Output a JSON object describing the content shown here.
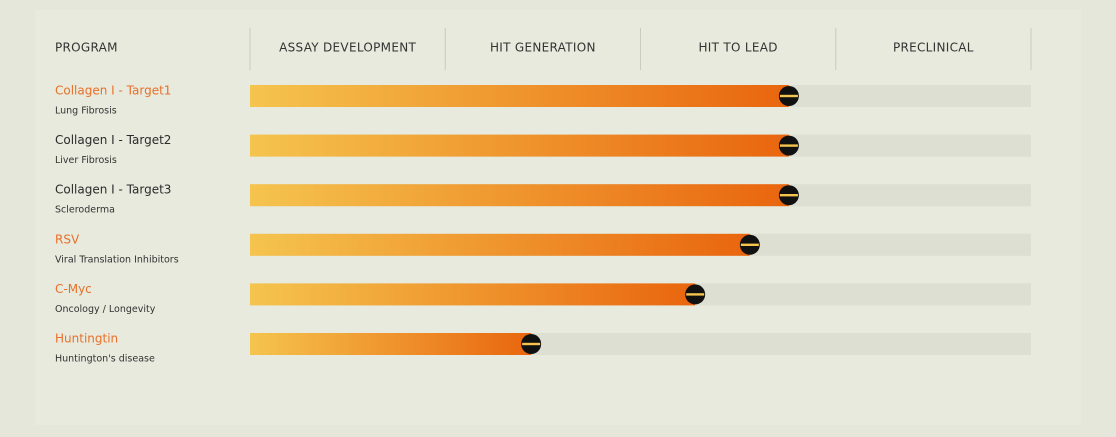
{
  "chart_data": {
    "type": "bar",
    "header": "PROGRAM",
    "stages": [
      "ASSAY DEVELOPMENT",
      "HIT GENERATION",
      "HIT TO LEAD",
      "PRECLINICAL"
    ],
    "categories": [
      "Collagen I - Target1",
      "Collagen I - Target2",
      "Collagen I - Target3",
      "RSV",
      "C-Myc",
      "Huntingtin"
    ],
    "subtitles": [
      "Lung Fibrosis",
      "Liver Fibrosis",
      "Scleroderma",
      "Viral Translation Inhibitors",
      "Oncology / Longevity",
      "Huntington's disease"
    ],
    "values": [
      2.76,
      2.76,
      2.76,
      2.56,
      2.28,
      1.44
    ],
    "xlim": [
      0,
      4
    ],
    "label_colors": [
      "#e8702a",
      "#2b2b2b",
      "#2b2b2b",
      "#e8702a",
      "#e8702a",
      "#e8702a"
    ],
    "color_start": "#f5c44e",
    "color_end": "#e9650e",
    "track_color": "#dcdfd2"
  }
}
